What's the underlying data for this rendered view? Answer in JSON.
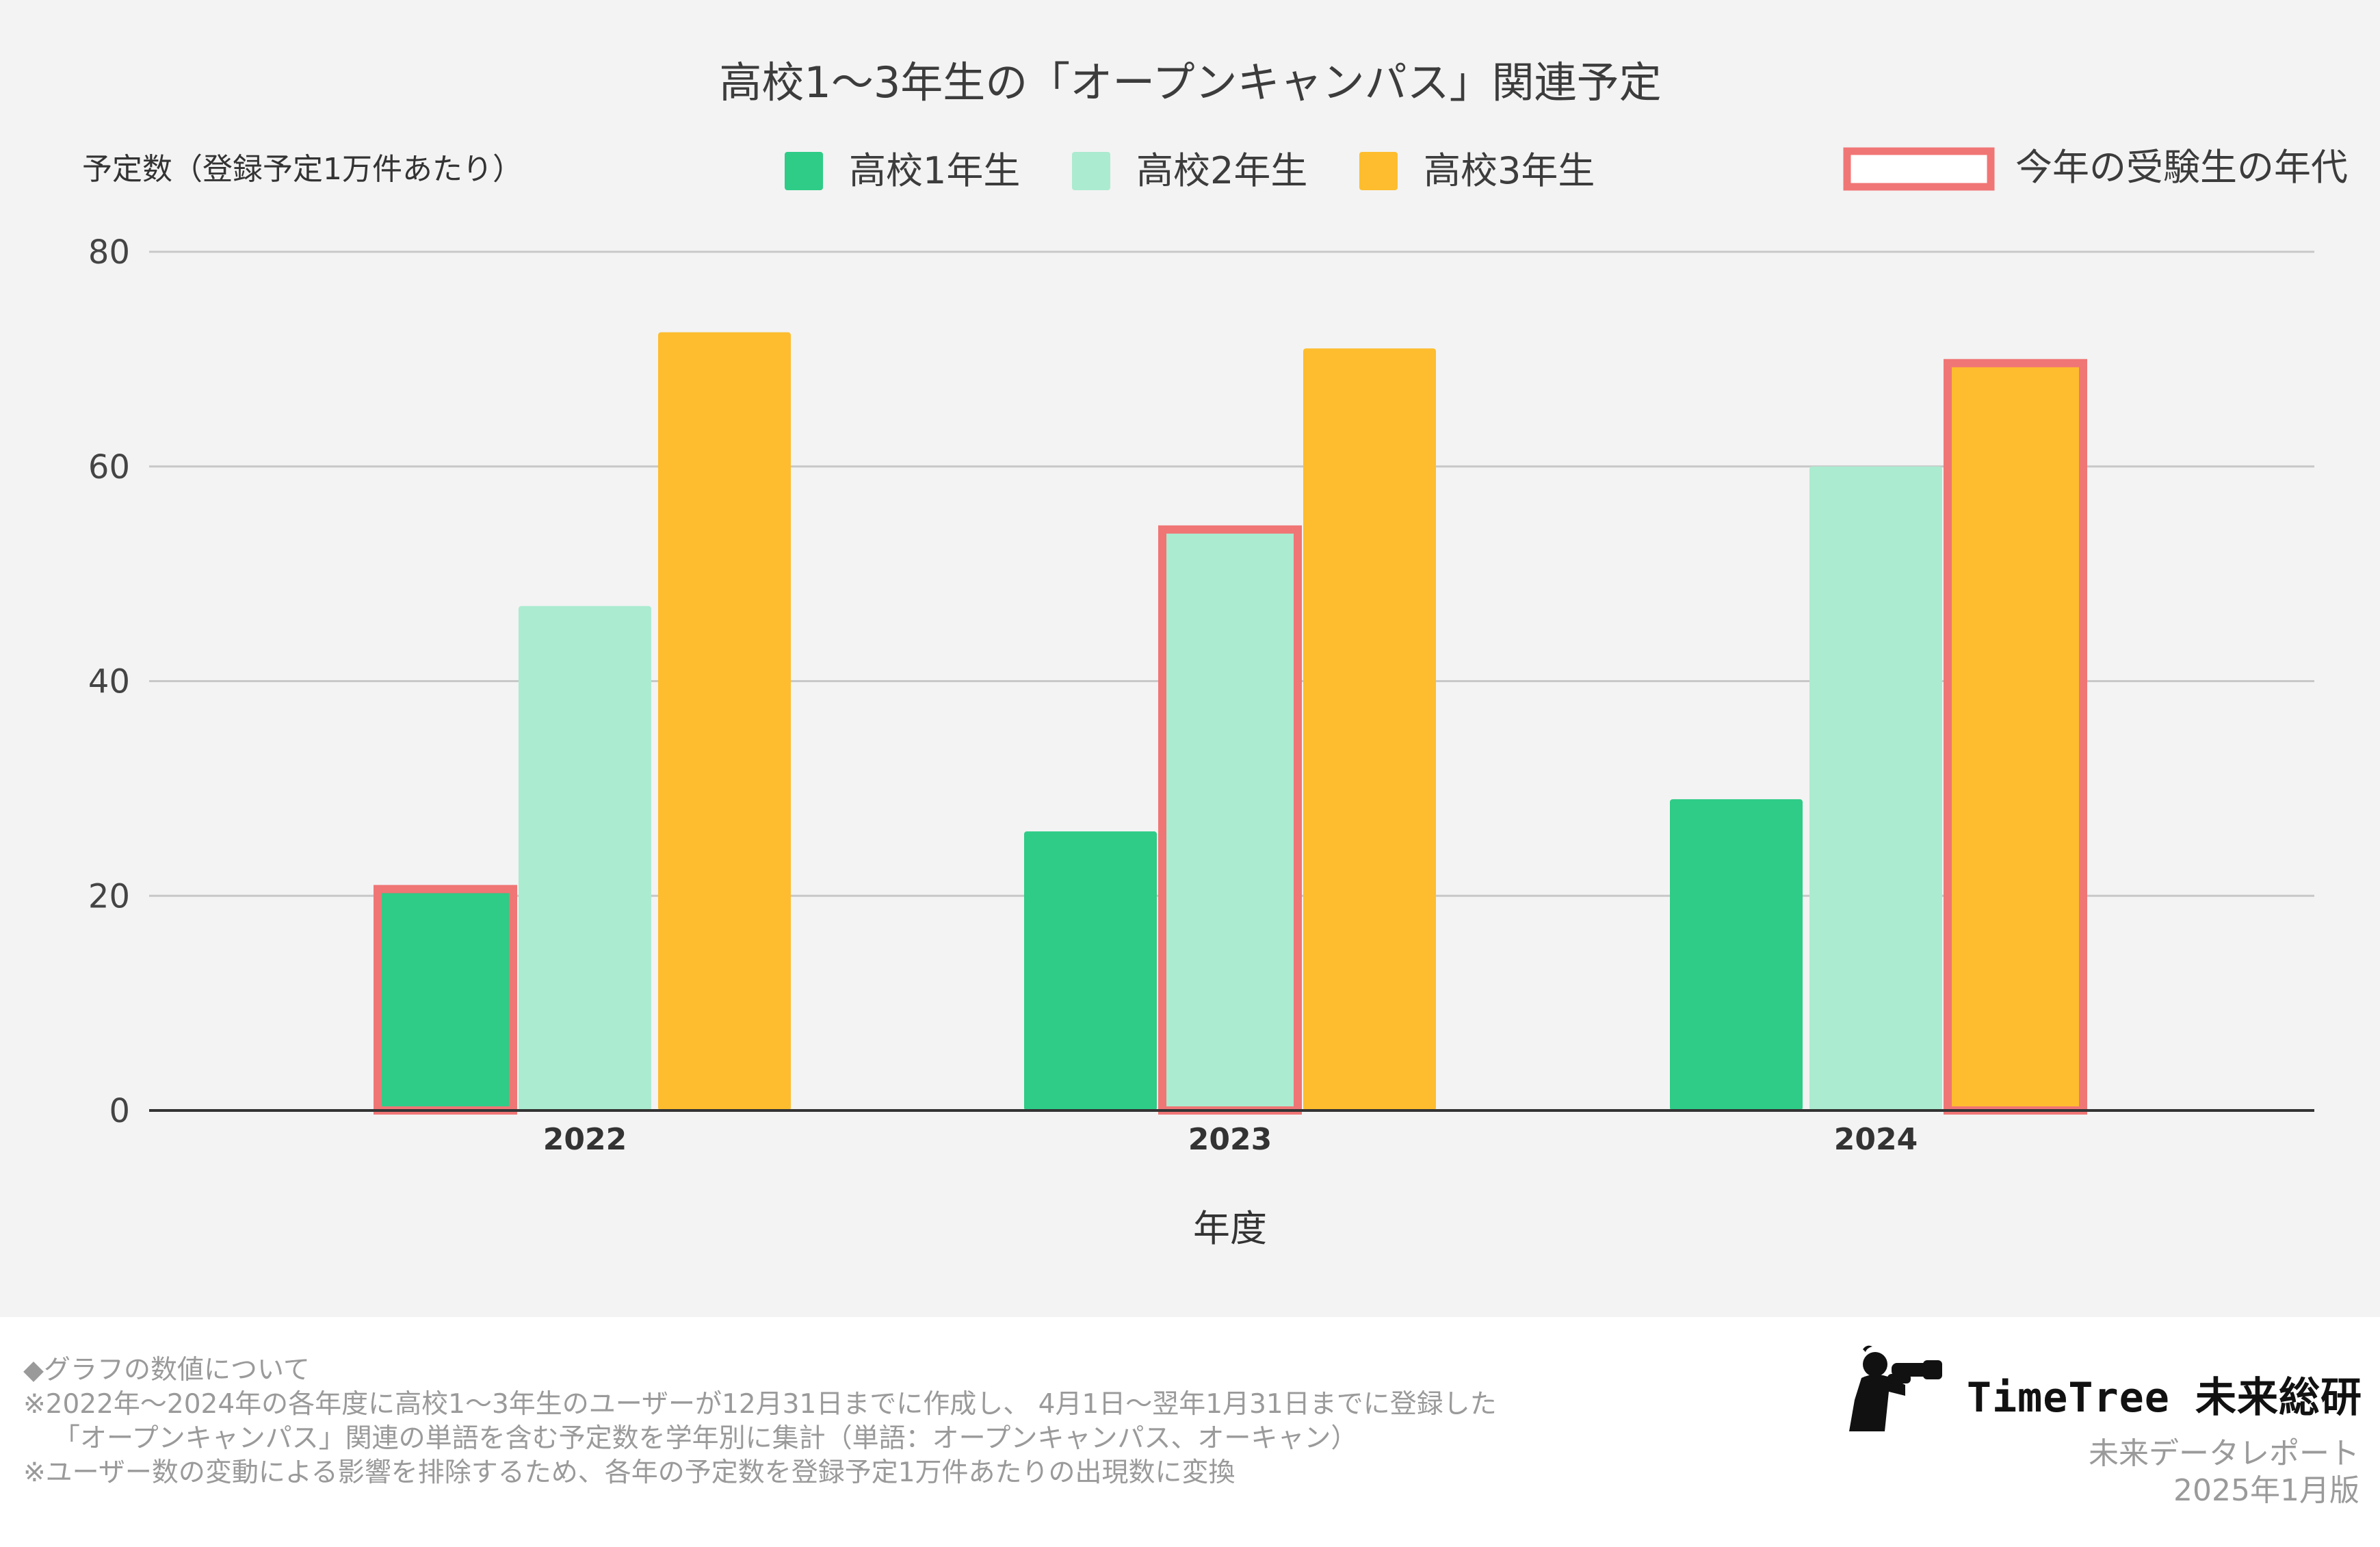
{
  "chart_data": {
    "type": "bar",
    "title": "高校1〜3年生の「オープンキャンパス」関連予定",
    "ylabel": "予定数（登録予定1万件あたり）",
    "xlabel": "年度",
    "ylim": [
      0,
      80
    ],
    "yticks": [
      0,
      20,
      40,
      60,
      80
    ],
    "grid": true,
    "categories": [
      "2022",
      "2023",
      "2024"
    ],
    "series": [
      {
        "name": "高校1年生",
        "color": "#2ecc87",
        "values": [
          20.5,
          26,
          29
        ]
      },
      {
        "name": "高校2年生",
        "color": "#abebd0",
        "values": [
          47,
          54,
          60
        ]
      },
      {
        "name": "高校3年生",
        "color": "#fdbd2e",
        "values": [
          72.5,
          71,
          69.5
        ]
      }
    ],
    "highlight": {
      "label": "今年の受験生の年代",
      "color": "#f07575",
      "bars": [
        [
          0,
          0
        ],
        [
          1,
          1
        ],
        [
          2,
          2
        ]
      ]
    },
    "legend_position": "top"
  },
  "footnote": {
    "heading": "◆グラフの数値について",
    "line1": "※2022年〜2024年の各年度に高校1〜3年生のユーザーが12月31日までに作成し、 4月1日〜翌年1月31日までに登録した",
    "line2": "「オープンキャンパス」関連の単語を含む予定数を学年別に集計（単語：オープンキャンパス、オーキャン）",
    "line3": "※ユーザー数の変動による影響を排除するため、各年の予定数を登録予定1万件あたりの出現数に変換"
  },
  "brand": {
    "name": "TimeTree 未来総研",
    "subtitle": "未来データレポート",
    "edition": "2025年1月版",
    "logo_icon": "person-with-binoculars-icon"
  }
}
